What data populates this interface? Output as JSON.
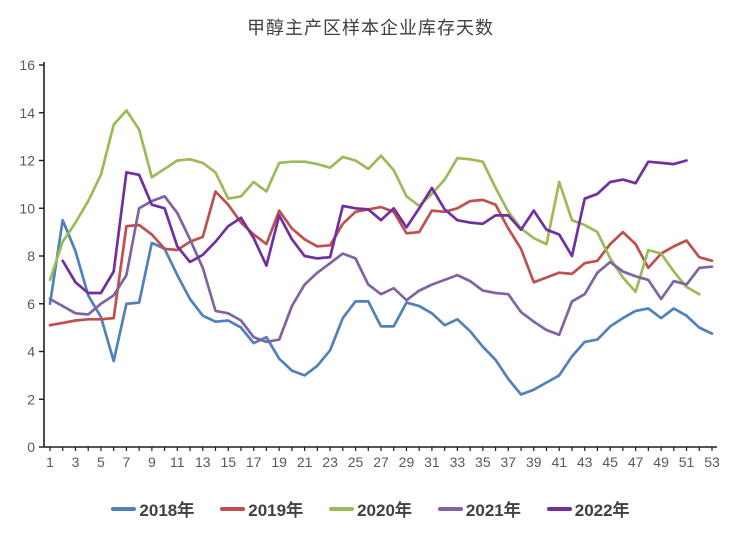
{
  "chart_data": {
    "type": "line",
    "title": "甲醇主产区样本企业库存天数",
    "xlabel": "",
    "ylabel": "",
    "categories": [
      1,
      2,
      3,
      4,
      5,
      6,
      7,
      8,
      9,
      10,
      11,
      12,
      13,
      14,
      15,
      16,
      17,
      18,
      19,
      20,
      21,
      22,
      23,
      24,
      25,
      26,
      27,
      28,
      29,
      30,
      31,
      32,
      33,
      34,
      35,
      36,
      37,
      38,
      39,
      40,
      41,
      42,
      43,
      44,
      45,
      46,
      47,
      48,
      49,
      50,
      51,
      52,
      53
    ],
    "x_tick_labels": [
      1,
      3,
      5,
      7,
      9,
      11,
      13,
      15,
      17,
      19,
      21,
      23,
      25,
      27,
      29,
      31,
      33,
      35,
      37,
      39,
      41,
      43,
      45,
      47,
      49,
      51,
      53
    ],
    "ylim": [
      0,
      16
    ],
    "y_tick_step": 2,
    "grid": false,
    "legend_position": "bottom",
    "axis_color": "#1f1f1f",
    "tick_label_color": "#595959",
    "title_color": "#3f3f3f",
    "series": [
      {
        "name": "2018年",
        "color": "#4f81bd",
        "values": [
          6.0,
          9.5,
          8.2,
          6.35,
          5.45,
          3.6,
          6.0,
          6.05,
          8.55,
          8.3,
          7.2,
          6.2,
          5.5,
          5.25,
          5.3,
          5.0,
          4.35,
          4.6,
          3.7,
          3.2,
          3.0,
          3.4,
          4.05,
          5.4,
          6.1,
          6.1,
          5.05,
          5.05,
          6.05,
          5.9,
          5.6,
          5.1,
          5.35,
          4.85,
          4.2,
          3.65,
          2.85,
          2.2,
          2.4,
          2.7,
          3.0,
          3.8,
          4.4,
          4.5,
          5.05,
          5.4,
          5.7,
          5.8,
          5.4,
          5.8,
          5.5,
          5.0,
          4.75
        ]
      },
      {
        "name": "2019年",
        "color": "#c0504d",
        "values": [
          5.1,
          5.2,
          5.3,
          5.35,
          5.35,
          5.4,
          9.25,
          9.3,
          8.9,
          8.3,
          8.25,
          8.6,
          8.8,
          10.7,
          10.15,
          9.4,
          8.9,
          8.5,
          9.9,
          9.15,
          8.7,
          8.4,
          8.45,
          9.35,
          9.85,
          9.95,
          10.05,
          9.85,
          8.95,
          9.0,
          9.9,
          9.85,
          10.0,
          10.3,
          10.35,
          10.15,
          9.15,
          8.3,
          6.9,
          7.1,
          7.3,
          7.25,
          7.7,
          7.8,
          8.5,
          9.0,
          8.5,
          7.5,
          8.1,
          8.4,
          8.65,
          7.95,
          7.8
        ]
      },
      {
        "name": "2020年",
        "color": "#9bbb59",
        "values": [
          7.0,
          8.6,
          9.4,
          10.3,
          11.4,
          13.5,
          14.1,
          13.3,
          11.3,
          11.65,
          12.0,
          12.05,
          11.9,
          11.5,
          10.4,
          10.5,
          11.1,
          10.7,
          11.9,
          11.95,
          11.95,
          11.85,
          11.7,
          12.15,
          12.0,
          11.65,
          12.2,
          11.6,
          10.5,
          10.1,
          10.6,
          11.2,
          12.1,
          12.05,
          11.95,
          10.85,
          9.85,
          9.15,
          8.75,
          8.5,
          11.1,
          9.5,
          9.3,
          9.0,
          7.9,
          7.1,
          6.5,
          8.25,
          8.1,
          7.35,
          6.7,
          6.4,
          null
        ]
      },
      {
        "name": "2021年",
        "color": "#8064a2",
        "values": [
          6.2,
          5.9,
          5.6,
          5.55,
          6.0,
          6.35,
          7.2,
          10.0,
          10.3,
          10.5,
          9.8,
          8.7,
          7.5,
          5.7,
          5.6,
          5.3,
          4.6,
          4.4,
          4.5,
          5.9,
          6.8,
          7.3,
          7.7,
          8.1,
          7.9,
          6.8,
          6.4,
          6.65,
          6.15,
          6.55,
          6.8,
          7.0,
          7.2,
          6.95,
          6.55,
          6.45,
          6.4,
          5.65,
          5.25,
          4.9,
          4.7,
          6.1,
          6.4,
          7.3,
          7.75,
          7.35,
          7.15,
          7.0,
          6.2,
          6.95,
          6.8,
          7.5,
          7.55
        ]
      },
      {
        "name": "2022年",
        "color": "#7030a0",
        "values": [
          null,
          7.8,
          6.9,
          6.45,
          6.45,
          7.35,
          11.5,
          11.4,
          10.15,
          10.0,
          8.4,
          7.75,
          8.05,
          8.6,
          9.25,
          9.6,
          8.75,
          7.6,
          9.7,
          8.7,
          8.0,
          7.9,
          7.95,
          10.1,
          10.0,
          9.95,
          9.5,
          10.0,
          9.2,
          10.0,
          10.85,
          9.95,
          9.5,
          9.4,
          9.35,
          9.7,
          9.7,
          9.1,
          9.9,
          9.1,
          8.9,
          8.0,
          10.4,
          10.6,
          11.1,
          11.2,
          11.05,
          11.95,
          11.9,
          11.85,
          12.0,
          null,
          null
        ]
      }
    ]
  }
}
